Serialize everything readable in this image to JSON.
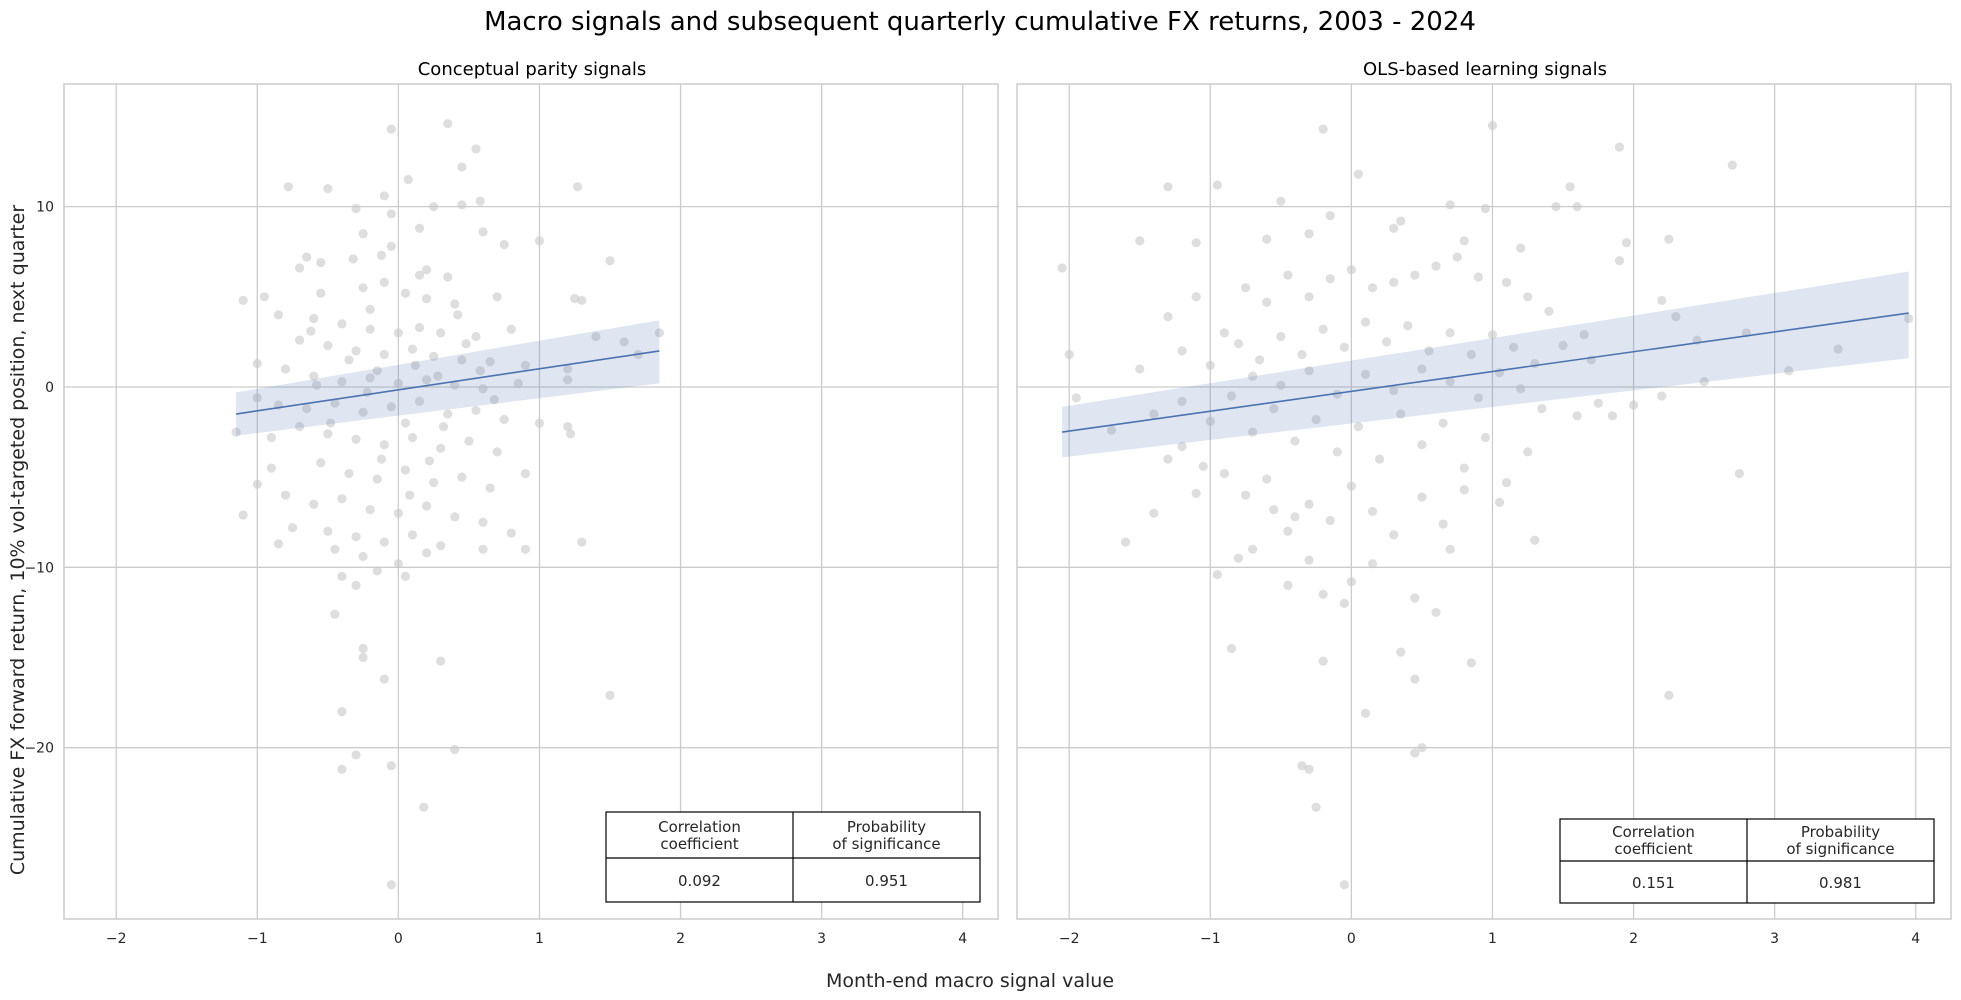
{
  "figure": {
    "title": "Macro signals and subsequent quarterly cumulative FX returns, 2003 - 2024",
    "xlabel": "Month-end macro signal value",
    "ylabel": "Cumulative FX forward return, 10% vol-targeted position, next quarter"
  },
  "colors": {
    "scatter": "#c8c8c8",
    "line": "#4c72b0",
    "band": "#4c72b0",
    "grid": "#cccccc",
    "axes": "#cccccc"
  },
  "chart_data": [
    {
      "type": "scatter",
      "title": "Conceptual parity signals",
      "xlim": [
        -2.37,
        4.25
      ],
      "ylim": [
        -29.5,
        16.8
      ],
      "xticks": [
        -2,
        -1,
        0,
        1,
        2,
        3,
        4
      ],
      "yticks": [
        10,
        0,
        -10,
        -20
      ],
      "xtick_labels": [
        "−2",
        "−1",
        "0",
        "1",
        "2",
        "3",
        "4"
      ],
      "ytick_labels": [
        "10",
        "0",
        "−10",
        "−20"
      ],
      "grid": true,
      "regression": {
        "x": [
          -1.15,
          1.85
        ],
        "y": [
          -1.5,
          2.0
        ],
        "ci_upper": [
          -0.3,
          3.7
        ],
        "ci_lower": [
          -2.7,
          0.2
        ]
      },
      "table": {
        "headers": [
          "Correlation\ncoefficient",
          "Probability\nof significance"
        ],
        "values": [
          "0.092",
          "0.951"
        ]
      },
      "points": [
        [
          -0.05,
          14.3
        ],
        [
          0.35,
          14.6
        ],
        [
          0.55,
          13.2
        ],
        [
          0.45,
          12.2
        ],
        [
          0.07,
          11.5
        ],
        [
          -0.5,
          11.0
        ],
        [
          -0.78,
          11.1
        ],
        [
          1.27,
          11.1
        ],
        [
          -0.1,
          10.6
        ],
        [
          0.25,
          10.0
        ],
        [
          0.45,
          10.1
        ],
        [
          0.58,
          10.3
        ],
        [
          -0.3,
          9.9
        ],
        [
          -0.05,
          9.6
        ],
        [
          0.15,
          8.8
        ],
        [
          0.6,
          8.6
        ],
        [
          1.0,
          8.1
        ],
        [
          -0.25,
          8.5
        ],
        [
          -0.65,
          7.2
        ],
        [
          -0.7,
          6.6
        ],
        [
          -0.55,
          6.9
        ],
        [
          -0.32,
          7.1
        ],
        [
          -0.12,
          7.3
        ],
        [
          0.2,
          6.5
        ],
        [
          0.35,
          6.1
        ],
        [
          0.75,
          7.9
        ],
        [
          1.5,
          7.0
        ],
        [
          -0.95,
          5.0
        ],
        [
          -1.1,
          4.8
        ],
        [
          -0.55,
          5.2
        ],
        [
          -0.25,
          5.5
        ],
        [
          -0.1,
          5.8
        ],
        [
          0.05,
          5.2
        ],
        [
          0.2,
          4.9
        ],
        [
          0.4,
          4.6
        ],
        [
          0.7,
          5.0
        ],
        [
          1.25,
          4.9
        ],
        [
          1.3,
          4.8
        ],
        [
          -0.85,
          4.0
        ],
        [
          -0.6,
          3.8
        ],
        [
          -0.4,
          3.5
        ],
        [
          -0.2,
          3.2
        ],
        [
          0.0,
          3.0
        ],
        [
          0.15,
          3.3
        ],
        [
          0.3,
          3.0
        ],
        [
          0.55,
          2.8
        ],
        [
          0.8,
          3.2
        ],
        [
          1.4,
          2.8
        ],
        [
          1.6,
          2.5
        ],
        [
          -0.7,
          2.6
        ],
        [
          -0.5,
          2.3
        ],
        [
          -0.3,
          2.0
        ],
        [
          -0.1,
          1.8
        ],
        [
          0.1,
          2.1
        ],
        [
          0.25,
          1.7
        ],
        [
          0.45,
          1.5
        ],
        [
          0.65,
          1.4
        ],
        [
          0.9,
          1.2
        ],
        [
          1.2,
          1.0
        ],
        [
          -1.0,
          1.3
        ],
        [
          -0.8,
          1.0
        ],
        [
          -0.6,
          0.6
        ],
        [
          -0.4,
          0.3
        ],
        [
          -0.2,
          0.5
        ],
        [
          0.0,
          0.2
        ],
        [
          0.2,
          0.4
        ],
        [
          0.4,
          0.1
        ],
        [
          0.6,
          -0.1
        ],
        [
          0.85,
          0.2
        ],
        [
          1.2,
          0.4
        ],
        [
          -1.15,
          -2.5
        ],
        [
          -1.0,
          -0.6
        ],
        [
          -0.85,
          -1.0
        ],
        [
          -0.65,
          -1.2
        ],
        [
          -0.45,
          -0.9
        ],
        [
          -0.25,
          -1.4
        ],
        [
          -0.05,
          -1.1
        ],
        [
          0.15,
          -0.8
        ],
        [
          0.35,
          -1.5
        ],
        [
          0.55,
          -1.3
        ],
        [
          0.75,
          -1.8
        ],
        [
          1.0,
          -2.0
        ],
        [
          1.2,
          -2.2
        ],
        [
          1.22,
          -2.6
        ],
        [
          -0.7,
          -2.2
        ],
        [
          -0.5,
          -2.6
        ],
        [
          -0.3,
          -2.9
        ],
        [
          -0.1,
          -3.2
        ],
        [
          0.1,
          -2.8
        ],
        [
          0.3,
          -3.4
        ],
        [
          0.5,
          -3.0
        ],
        [
          0.7,
          -3.6
        ],
        [
          -0.9,
          -4.5
        ],
        [
          -0.55,
          -4.2
        ],
        [
          -0.35,
          -4.8
        ],
        [
          -0.15,
          -5.1
        ],
        [
          0.05,
          -4.6
        ],
        [
          0.25,
          -5.3
        ],
        [
          0.45,
          -5.0
        ],
        [
          0.65,
          -5.6
        ],
        [
          -1.0,
          -5.4
        ],
        [
          -0.8,
          -6.0
        ],
        [
          -0.6,
          -6.5
        ],
        [
          -0.4,
          -6.2
        ],
        [
          -0.2,
          -6.8
        ],
        [
          0.0,
          -7.0
        ],
        [
          0.2,
          -6.6
        ],
        [
          0.4,
          -7.2
        ],
        [
          0.6,
          -7.5
        ],
        [
          -1.1,
          -7.1
        ],
        [
          -0.75,
          -7.8
        ],
        [
          -0.5,
          -8.0
        ],
        [
          -0.3,
          -8.3
        ],
        [
          -0.1,
          -8.6
        ],
        [
          0.1,
          -8.2
        ],
        [
          0.3,
          -8.8
        ],
        [
          0.6,
          -9.0
        ],
        [
          0.8,
          -8.1
        ],
        [
          -0.85,
          -8.7
        ],
        [
          -0.45,
          -9.0
        ],
        [
          -0.25,
          -9.4
        ],
        [
          0.0,
          -9.8
        ],
        [
          0.2,
          -9.2
        ],
        [
          0.9,
          -9.0
        ],
        [
          1.3,
          -8.6
        ],
        [
          -0.4,
          -10.5
        ],
        [
          -0.15,
          -10.2
        ],
        [
          0.05,
          -10.5
        ],
        [
          -0.3,
          -11.0
        ],
        [
          -0.45,
          -12.6
        ],
        [
          -0.25,
          -14.5
        ],
        [
          -0.25,
          -15.0
        ],
        [
          -0.1,
          -16.2
        ],
        [
          0.3,
          -15.2
        ],
        [
          -0.4,
          -18.0
        ],
        [
          -0.4,
          -21.2
        ],
        [
          -0.3,
          -20.4
        ],
        [
          -0.05,
          -21.0
        ],
        [
          0.4,
          -20.1
        ],
        [
          0.18,
          -23.3
        ],
        [
          -0.05,
          -27.6
        ],
        [
          1.5,
          -17.1
        ],
        [
          -0.2,
          4.3
        ],
        [
          -0.15,
          0.9
        ],
        [
          0.05,
          -2.0
        ],
        [
          0.12,
          1.2
        ],
        [
          -0.22,
          -0.3
        ],
        [
          0.28,
          0.6
        ],
        [
          -0.35,
          1.5
        ],
        [
          0.32,
          -2.2
        ],
        [
          0.48,
          2.4
        ],
        [
          -0.48,
          -2.0
        ],
        [
          0.58,
          0.9
        ],
        [
          -0.58,
          0.1
        ],
        [
          0.68,
          -0.7
        ],
        [
          1.85,
          3.0
        ],
        [
          1.7,
          1.8
        ],
        [
          0.9,
          -4.8
        ],
        [
          -0.9,
          -2.8
        ],
        [
          0.15,
          6.2
        ],
        [
          -0.05,
          7.8
        ],
        [
          0.42,
          4.0
        ],
        [
          -0.12,
          -4.0
        ],
        [
          0.22,
          -4.1
        ],
        [
          -0.62,
          3.1
        ],
        [
          0.08,
          -6.0
        ]
      ]
    },
    {
      "type": "scatter",
      "title": "OLS-based learning signals",
      "xlim": [
        -2.37,
        4.25
      ],
      "ylim": [
        -29.5,
        16.8
      ],
      "xticks": [
        -2,
        -1,
        0,
        1,
        2,
        3,
        4
      ],
      "yticks": [
        10,
        0,
        -10,
        -20
      ],
      "xtick_labels": [
        "−2",
        "−1",
        "0",
        "1",
        "2",
        "3",
        "4"
      ],
      "ytick_labels": [
        "10",
        "0",
        "−10",
        "−20"
      ],
      "grid": true,
      "regression": {
        "x": [
          -2.05,
          3.95
        ],
        "y": [
          -2.5,
          4.1
        ],
        "ci_upper": [
          -1.1,
          6.4
        ],
        "ci_lower": [
          -3.9,
          1.6
        ]
      },
      "table": {
        "headers": [
          "Correlation\ncoefficient",
          "Probability\nof significance"
        ],
        "values": [
          "0.151",
          "0.981"
        ]
      },
      "points": [
        [
          -2.05,
          6.6
        ],
        [
          -1.3,
          11.1
        ],
        [
          -0.95,
          11.2
        ],
        [
          -0.2,
          14.3
        ],
        [
          1.0,
          14.5
        ],
        [
          2.7,
          12.3
        ],
        [
          1.9,
          13.3
        ],
        [
          1.55,
          11.1
        ],
        [
          1.6,
          10.0
        ],
        [
          0.7,
          10.1
        ],
        [
          -0.5,
          10.3
        ],
        [
          -1.5,
          8.1
        ],
        [
          -1.1,
          8.0
        ],
        [
          -0.3,
          8.5
        ],
        [
          0.3,
          8.8
        ],
        [
          0.8,
          8.1
        ],
        [
          1.2,
          7.7
        ],
        [
          1.95,
          8.0
        ],
        [
          2.25,
          8.2
        ],
        [
          1.9,
          7.0
        ],
        [
          2.2,
          4.8
        ],
        [
          2.3,
          3.9
        ],
        [
          2.45,
          2.6
        ],
        [
          2.8,
          3.0
        ],
        [
          3.45,
          2.1
        ],
        [
          3.95,
          3.8
        ],
        [
          3.1,
          0.9
        ],
        [
          2.2,
          -0.5
        ],
        [
          2.0,
          -1.0
        ],
        [
          1.75,
          -0.9
        ],
        [
          1.6,
          -1.6
        ],
        [
          1.35,
          -1.2
        ],
        [
          1.3,
          -8.5
        ],
        [
          2.75,
          -4.8
        ],
        [
          2.25,
          -17.1
        ],
        [
          -2.0,
          1.8
        ],
        [
          -1.95,
          -0.6
        ],
        [
          -1.7,
          -2.4
        ],
        [
          -1.6,
          -8.6
        ],
        [
          -1.4,
          -7.0
        ],
        [
          -1.2,
          -3.3
        ],
        [
          -1.05,
          -4.4
        ],
        [
          -0.95,
          -10.4
        ],
        [
          -0.85,
          -14.5
        ],
        [
          -0.7,
          -9.0
        ],
        [
          -0.55,
          -6.8
        ],
        [
          -0.4,
          -7.2
        ],
        [
          -0.3,
          -9.6
        ],
        [
          -0.2,
          -11.5
        ],
        [
          -0.2,
          -15.2
        ],
        [
          -0.05,
          -12.0
        ],
        [
          0.0,
          -10.8
        ],
        [
          0.1,
          -18.1
        ],
        [
          0.35,
          -14.7
        ],
        [
          0.45,
          -16.2
        ],
        [
          0.45,
          -20.3
        ],
        [
          0.5,
          -20.0
        ],
        [
          0.45,
          -11.7
        ],
        [
          0.6,
          -12.5
        ],
        [
          0.7,
          -9.0
        ],
        [
          0.85,
          -15.3
        ],
        [
          -0.35,
          -21.0
        ],
        [
          -0.25,
          -23.3
        ],
        [
          -0.05,
          -27.6
        ],
        [
          -0.3,
          -21.2
        ],
        [
          -1.5,
          1.0
        ],
        [
          -1.3,
          3.9
        ],
        [
          -1.1,
          5.0
        ],
        [
          -0.9,
          3.0
        ],
        [
          -0.75,
          5.5
        ],
        [
          -0.6,
          4.7
        ],
        [
          -0.45,
          6.2
        ],
        [
          -0.3,
          5.0
        ],
        [
          -0.15,
          6.0
        ],
        [
          0.0,
          6.5
        ],
        [
          0.15,
          5.5
        ],
        [
          0.3,
          5.8
        ],
        [
          0.45,
          6.2
        ],
        [
          0.6,
          6.7
        ],
        [
          0.75,
          7.2
        ],
        [
          0.9,
          6.1
        ],
        [
          1.1,
          5.8
        ],
        [
          1.25,
          5.0
        ],
        [
          1.4,
          4.2
        ],
        [
          -1.2,
          2.0
        ],
        [
          -1.0,
          1.2
        ],
        [
          -0.8,
          2.4
        ],
        [
          -0.65,
          1.5
        ],
        [
          -0.5,
          2.8
        ],
        [
          -0.35,
          1.8
        ],
        [
          -0.2,
          3.2
        ],
        [
          -0.05,
          2.2
        ],
        [
          0.1,
          3.6
        ],
        [
          0.25,
          2.5
        ],
        [
          0.4,
          3.4
        ],
        [
          0.55,
          2.0
        ],
        [
          0.7,
          3.0
        ],
        [
          0.85,
          1.8
        ],
        [
          1.0,
          2.9
        ],
        [
          1.15,
          2.2
        ],
        [
          1.3,
          1.3
        ],
        [
          1.5,
          2.3
        ],
        [
          1.7,
          1.5
        ],
        [
          -1.4,
          -1.5
        ],
        [
          -1.2,
          -0.8
        ],
        [
          -1.0,
          -1.9
        ],
        [
          -0.85,
          -0.5
        ],
        [
          -0.7,
          -2.5
        ],
        [
          -0.55,
          -1.2
        ],
        [
          -0.4,
          -3.0
        ],
        [
          -0.25,
          -1.8
        ],
        [
          -0.1,
          -3.6
        ],
        [
          0.05,
          -2.2
        ],
        [
          0.2,
          -4.0
        ],
        [
          0.35,
          -1.5
        ],
        [
          0.5,
          -3.2
        ],
        [
          0.65,
          -2.0
        ],
        [
          0.8,
          -4.5
        ],
        [
          0.95,
          -2.8
        ],
        [
          1.1,
          -5.3
        ],
        [
          1.25,
          -3.6
        ],
        [
          -1.3,
          -4.0
        ],
        [
          -1.1,
          -5.9
        ],
        [
          -0.9,
          -4.8
        ],
        [
          -0.75,
          -6.0
        ],
        [
          -0.6,
          -5.1
        ],
        [
          -0.45,
          -8.0
        ],
        [
          -0.3,
          -6.5
        ],
        [
          -0.15,
          -7.4
        ],
        [
          0.0,
          -5.5
        ],
        [
          0.15,
          -6.9
        ],
        [
          0.3,
          -8.2
        ],
        [
          0.5,
          -6.1
        ],
        [
          0.65,
          -7.6
        ],
        [
          0.8,
          -5.7
        ],
        [
          1.05,
          -6.4
        ],
        [
          -0.7,
          0.6
        ],
        [
          -0.5,
          0.1
        ],
        [
          -0.3,
          0.9
        ],
        [
          -0.1,
          -0.4
        ],
        [
          0.1,
          0.7
        ],
        [
          0.3,
          -0.2
        ],
        [
          0.5,
          1.0
        ],
        [
          0.7,
          0.3
        ],
        [
          0.9,
          -0.6
        ],
        [
          1.05,
          0.8
        ],
        [
          1.2,
          -0.1
        ],
        [
          -0.15,
          9.5
        ],
        [
          0.05,
          11.8
        ],
        [
          0.35,
          9.2
        ],
        [
          -0.6,
          8.2
        ],
        [
          1.45,
          10.0
        ],
        [
          0.95,
          9.9
        ],
        [
          -0.8,
          -9.5
        ],
        [
          0.15,
          -9.8
        ],
        [
          -0.45,
          -11.0
        ],
        [
          1.65,
          2.9
        ],
        [
          2.5,
          0.3
        ],
        [
          1.85,
          -1.6
        ]
      ]
    }
  ]
}
